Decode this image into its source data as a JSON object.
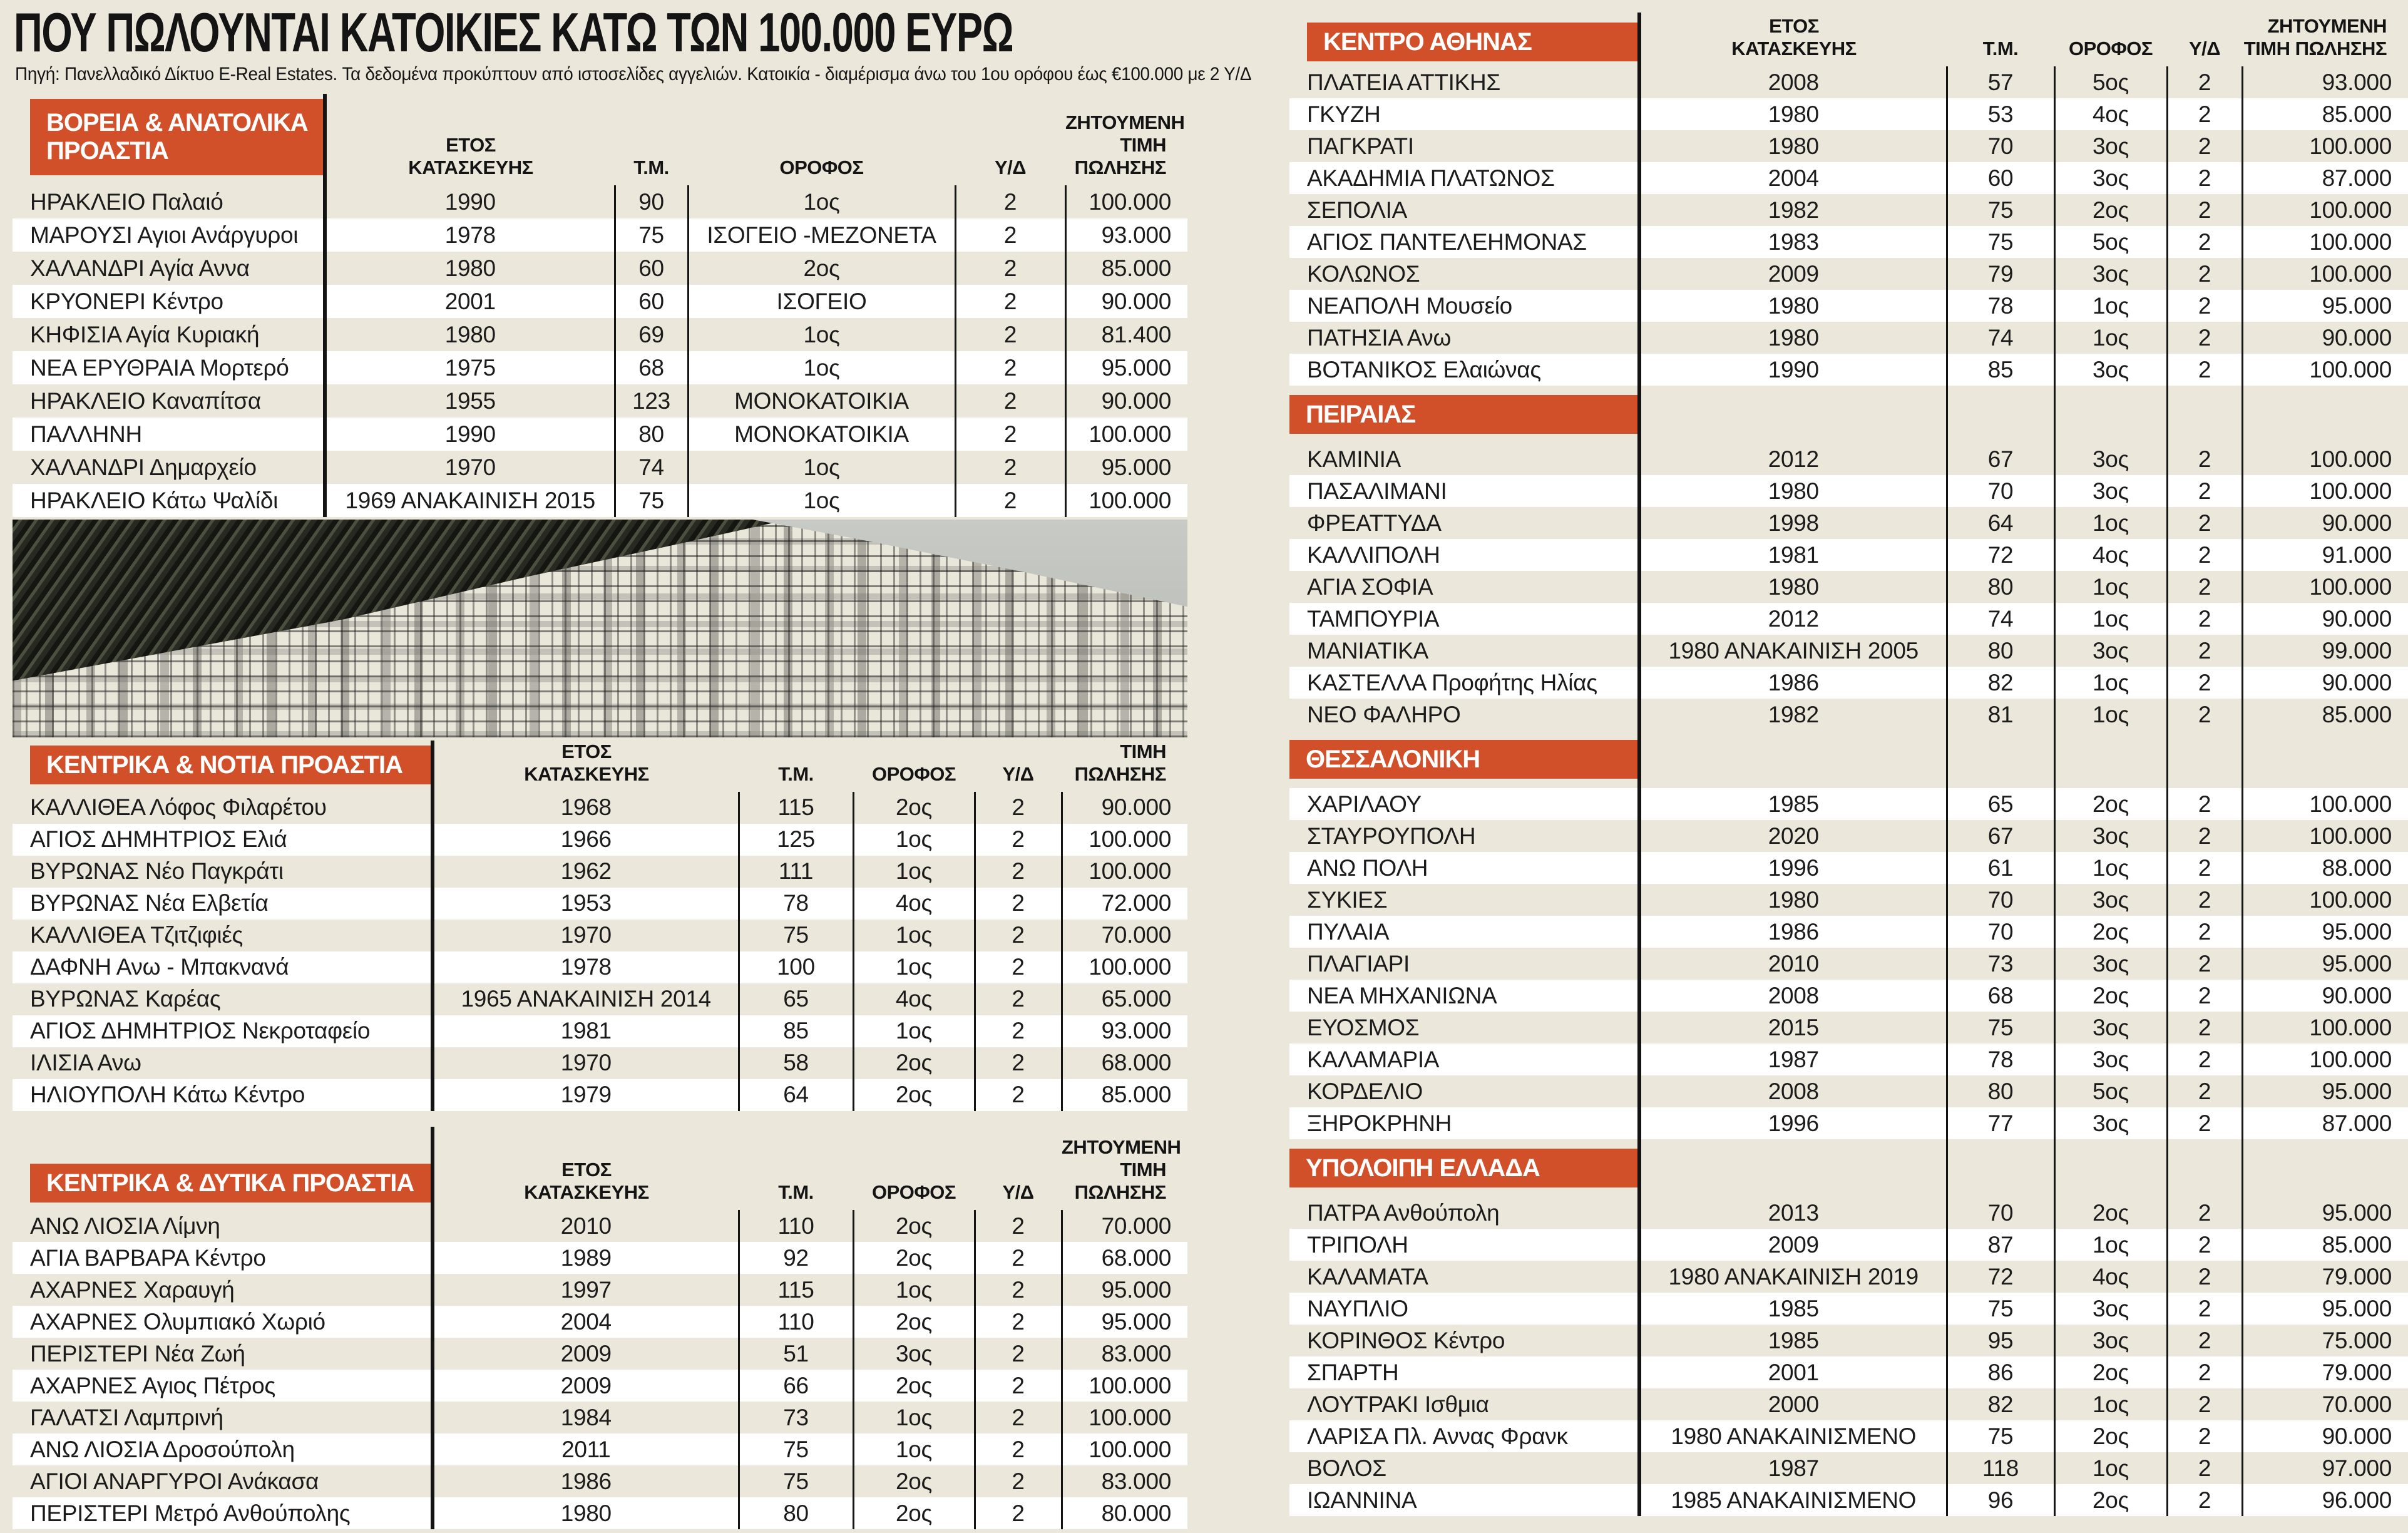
{
  "page": {
    "title": "ΠΟΥ ΠΩΛΟΥΝΤΑΙ ΚΑΤΟΙΚΙΕΣ ΚΑΤΩ ΤΩΝ 100.000 ΕΥΡΩ",
    "source_note": "Πηγή: Πανελλαδικό Δίκτυο  E-Real Estates. Τα δεδομένα προκύπτουν από ιστοσελίδες αγγελιών. Κατοικία - διαμέρισμα άνω του 1ου ορόφου έως €100.000 με 2 Υ/Δ",
    "photo": "ασπρόμαυρη πανοραμική φωτογραφία πυκνοδομημένης αθηναϊκής συνοικίας με λόφο"
  },
  "colors": {
    "accent_orange": "#d25029",
    "page_beige": "#ebe8db",
    "row_white": "#ffffff",
    "line_black": "#141414"
  },
  "columns": {
    "year_l1": "ΕΤΟΣ",
    "year_l2": "ΚΑΤΑΣΚΕΥΗΣ",
    "sqm": "Τ.Μ.",
    "floor": "ΟΡΟΦΟΣ",
    "bedrooms": "Υ/Δ"
  },
  "sections": [
    {
      "title": "ΒΟΡΕΙΑ & ΑΝΑΤΟΛΙΚΑ ΠΡΟΑΣΤΙΑ",
      "price_header": "ΖΗΤΟΥΜΕΝΗ ΤΙΜΗ ΠΩΛΗΣΗΣ",
      "rows": [
        {
          "location": "ΗΡΑΚΛΕΙΟ Παλαιό",
          "year": "1990",
          "sqm": "90",
          "floor": "1ος",
          "bedrooms": "2",
          "price": "100.000"
        },
        {
          "location": "ΜΑΡΟΥΣΙ Αγιοι Ανάργυροι",
          "year": "1978",
          "sqm": "75",
          "floor": "ΙΣΟΓΕΙΟ -ΜΕΖΟΝΕΤΑ",
          "bedrooms": "2",
          "price": "93.000"
        },
        {
          "location": "ΧΑΛΑΝΔΡΙ Αγία Αννα",
          "year": "1980",
          "sqm": "60",
          "floor": "2ος",
          "bedrooms": "2",
          "price": "85.000"
        },
        {
          "location": "ΚΡΥΟΝΕΡΙ Κέντρο",
          "year": "2001",
          "sqm": "60",
          "floor": "ΙΣΟΓΕΙΟ",
          "bedrooms": "2",
          "price": "90.000"
        },
        {
          "location": "ΚΗΦΙΣΙΑ Αγία Κυριακή",
          "year": "1980",
          "sqm": "69",
          "floor": "1ος",
          "bedrooms": "2",
          "price": "81.400"
        },
        {
          "location": "ΝΕΑ ΕΡΥΘΡΑΙΑ Μορτερό",
          "year": "1975",
          "sqm": "68",
          "floor": "1ος",
          "bedrooms": "2",
          "price": "95.000"
        },
        {
          "location": "ΗΡΑΚΛΕΙΟ Καναπίτσα",
          "year": "1955",
          "sqm": "123",
          "floor": "ΜΟΝΟΚΑΤΟΙΚΙΑ",
          "bedrooms": "2",
          "price": "90.000"
        },
        {
          "location": "ΠΑΛΛΗΝΗ",
          "year": "1990",
          "sqm": "80",
          "floor": "ΜΟΝΟΚΑΤΟΙΚΙΑ",
          "bedrooms": "2",
          "price": "100.000"
        },
        {
          "location": "ΧΑΛΑΝΔΡΙ Δημαρχείο",
          "year": "1970",
          "sqm": "74",
          "floor": "1ος",
          "bedrooms": "2",
          "price": "95.000"
        },
        {
          "location": "ΗΡΑΚΛΕΙΟ Κάτω Ψαλίδι",
          "year": "1969 ΑΝΑΚΑΙΝΙΣΗ 2015",
          "sqm": "75",
          "floor": "1ος",
          "bedrooms": "2",
          "price": "100.000"
        }
      ]
    },
    {
      "title": "ΚΕΝΤΡΙΚΑ & ΝΟΤΙΑ ΠΡΟΑΣΤΙΑ",
      "price_header": "ΤΙΜΗ ΠΩΛΗΣΗΣ",
      "rows": [
        {
          "location": "ΚΑΛΛΙΘΕΑ Λόφος Φιλαρέτου",
          "year": "1968",
          "sqm": "115",
          "floor": "2ος",
          "bedrooms": "2",
          "price": "90.000"
        },
        {
          "location": "ΑΓΙΟΣ ΔΗΜΗΤΡΙΟΣ Ελιά",
          "year": "1966",
          "sqm": "125",
          "floor": "1ος",
          "bedrooms": "2",
          "price": "100.000"
        },
        {
          "location": "ΒΥΡΩΝΑΣ Νέο Παγκράτι",
          "year": "1962",
          "sqm": "111",
          "floor": "1ος",
          "bedrooms": "2",
          "price": "100.000"
        },
        {
          "location": "ΒΥΡΩΝΑΣ Νέα Ελβετία",
          "year": "1953",
          "sqm": "78",
          "floor": "4ος",
          "bedrooms": "2",
          "price": "72.000"
        },
        {
          "location": "ΚΑΛΛΙΘΕΑ Τζιτζιφιές",
          "year": "1970",
          "sqm": "75",
          "floor": "1ος",
          "bedrooms": "2",
          "price": "70.000"
        },
        {
          "location": "ΔΑΦΝΗ Ανω - Μπακνανά",
          "year": "1978",
          "sqm": "100",
          "floor": "1ος",
          "bedrooms": "2",
          "price": "100.000"
        },
        {
          "location": "ΒΥΡΩΝΑΣ Καρέας",
          "year": "1965 ΑΝΑΚΑΙΝΙΣΗ 2014",
          "sqm": "65",
          "floor": "4ος",
          "bedrooms": "2",
          "price": "65.000"
        },
        {
          "location": "ΑΓΙΟΣ ΔΗΜΗΤΡΙΟΣ Νεκροταφείο",
          "year": "1981",
          "sqm": "85",
          "floor": "1ος",
          "bedrooms": "2",
          "price": "93.000"
        },
        {
          "location": "ΙΛΙΣΙΑ Ανω",
          "year": "1970",
          "sqm": "58",
          "floor": "2ος",
          "bedrooms": "2",
          "price": "68.000"
        },
        {
          "location": "ΗΛΙΟΥΠΟΛΗ Κάτω Κέντρο",
          "year": "1979",
          "sqm": "64",
          "floor": "2ος",
          "bedrooms": "2",
          "price": "85.000"
        }
      ]
    },
    {
      "title": "ΚΕΝΤΡΙΚΑ & ΔΥΤΙΚΑ ΠΡΟΑΣΤΙΑ",
      "price_header": "ΖΗΤΟΥΜΕΝΗ ΤΙΜΗ ΠΩΛΗΣΗΣ",
      "rows": [
        {
          "location": "ΑΝΩ ΛΙΟΣΙΑ Λίμνη",
          "year": "2010",
          "sqm": "110",
          "floor": "2ος",
          "bedrooms": "2",
          "price": "70.000"
        },
        {
          "location": "ΑΓΙΑ ΒΑΡΒΑΡΑ Κέντρο",
          "year": "1989",
          "sqm": "92",
          "floor": "2ος",
          "bedrooms": "2",
          "price": "68.000"
        },
        {
          "location": "ΑΧΑΡΝΕΣ Χαραυγή",
          "year": "1997",
          "sqm": "115",
          "floor": "1ος",
          "bedrooms": "2",
          "price": "95.000"
        },
        {
          "location": "ΑΧΑΡΝΕΣ Ολυμπιακό Χωριό",
          "year": "2004",
          "sqm": "110",
          "floor": "2ος",
          "bedrooms": "2",
          "price": "95.000"
        },
        {
          "location": "ΠΕΡΙΣΤΕΡΙ Νέα Ζωή",
          "year": "2009",
          "sqm": "51",
          "floor": "3ος",
          "bedrooms": "2",
          "price": "83.000"
        },
        {
          "location": "ΑΧΑΡΝΕΣ Αγιος Πέτρος",
          "year": "2009",
          "sqm": "66",
          "floor": "2ος",
          "bedrooms": "2",
          "price": "100.000"
        },
        {
          "location": "ΓΑΛΑΤΣΙ Λαμπρινή",
          "year": "1984",
          "sqm": "73",
          "floor": "1ος",
          "bedrooms": "2",
          "price": "100.000"
        },
        {
          "location": "ΑΝΩ ΛΙΟΣΙΑ Δροσούπολη",
          "year": "2011",
          "sqm": "75",
          "floor": "1ος",
          "bedrooms": "2",
          "price": "100.000"
        },
        {
          "location": "ΑΓΙΟΙ ΑΝΑΡΓΥΡΟΙ Ανάκασα",
          "year": "1986",
          "sqm": "75",
          "floor": "2ος",
          "bedrooms": "2",
          "price": "83.000"
        },
        {
          "location": "ΠΕΡΙΣΤΕΡΙ Μετρό Ανθούπολης",
          "year": "1980",
          "sqm": "80",
          "floor": "2ος",
          "bedrooms": "2",
          "price": "80.000"
        }
      ]
    },
    {
      "title": "ΚΕΝΤΡΟ ΑΘΗΝΑΣ",
      "price_header": "ΖΗΤΟΥΜΕΝΗ ΤΙΜΗ ΠΩΛΗΣΗΣ",
      "rows": [
        {
          "location": "ΠΛΑΤΕΙΑ ΑΤΤΙΚΗΣ",
          "year": "2008",
          "sqm": "57",
          "floor": "5ος",
          "bedrooms": "2",
          "price": "93.000"
        },
        {
          "location": "ΓΚΥΖΗ",
          "year": "1980",
          "sqm": "53",
          "floor": "4ος",
          "bedrooms": "2",
          "price": "85.000"
        },
        {
          "location": "ΠΑΓΚΡΑΤΙ",
          "year": "1980",
          "sqm": "70",
          "floor": "3ος",
          "bedrooms": "2",
          "price": "100.000"
        },
        {
          "location": "ΑΚΑΔΗΜΙΑ ΠΛΑΤΩΝΟΣ",
          "year": "2004",
          "sqm": "60",
          "floor": "3ος",
          "bedrooms": "2",
          "price": "87.000"
        },
        {
          "location": "ΣΕΠΟΛΙΑ",
          "year": "1982",
          "sqm": "75",
          "floor": "2ος",
          "bedrooms": "2",
          "price": "100.000"
        },
        {
          "location": "ΑΓΙΟΣ ΠΑΝΤΕΛΕΗΜΟΝΑΣ",
          "year": "1983",
          "sqm": "75",
          "floor": "5ος",
          "bedrooms": "2",
          "price": "100.000"
        },
        {
          "location": "ΚΟΛΩΝΟΣ",
          "year": "2009",
          "sqm": "79",
          "floor": "3ος",
          "bedrooms": "2",
          "price": "100.000"
        },
        {
          "location": "ΝΕΑΠΟΛΗ Μουσείο",
          "year": "1980",
          "sqm": "78",
          "floor": "1ος",
          "bedrooms": "2",
          "price": "95.000"
        },
        {
          "location": "ΠΑΤΗΣΙΑ Ανω",
          "year": "1980",
          "sqm": "74",
          "floor": "1ος",
          "bedrooms": "2",
          "price": "90.000"
        },
        {
          "location": "ΒΟΤΑΝΙΚΟΣ Ελαιώνας",
          "year": "1990",
          "sqm": "85",
          "floor": "3ος",
          "bedrooms": "2",
          "price": "100.000"
        }
      ]
    },
    {
      "title": "ΠΕΙΡΑΙΑΣ",
      "price_header": "ΖΗΤΟΥΜΕΝΗ ΤΙΜΗ ΠΩΛΗΣΗΣ",
      "rows": [
        {
          "location": "ΚΑΜΙΝΙΑ",
          "year": "2012",
          "sqm": "67",
          "floor": "3ος",
          "bedrooms": "2",
          "price": "100.000"
        },
        {
          "location": "ΠΑΣΑΛΙΜΑΝΙ",
          "year": "1980",
          "sqm": "70",
          "floor": "3ος",
          "bedrooms": "2",
          "price": "100.000"
        },
        {
          "location": "ΦΡΕΑΤΤΥΔΑ",
          "year": "1998",
          "sqm": "64",
          "floor": "1ος",
          "bedrooms": "2",
          "price": "90.000"
        },
        {
          "location": "ΚΑΛΛΙΠΟΛΗ",
          "year": "1981",
          "sqm": "72",
          "floor": "4ος",
          "bedrooms": "2",
          "price": "91.000"
        },
        {
          "location": "ΑΓΙΑ ΣΟΦΙΑ",
          "year": "1980",
          "sqm": "80",
          "floor": "1ος",
          "bedrooms": "2",
          "price": "100.000"
        },
        {
          "location": "ΤΑΜΠΟΥΡΙΑ",
          "year": "2012",
          "sqm": "74",
          "floor": "1ος",
          "bedrooms": "2",
          "price": "90.000"
        },
        {
          "location": "ΜΑΝΙΑΤΙΚΑ",
          "year": "1980 ΑΝΑΚΑΙΝΙΣΗ 2005",
          "sqm": "80",
          "floor": "3ος",
          "bedrooms": "2",
          "price": "99.000"
        },
        {
          "location": "ΚΑΣΤΕΛΛΑ Προφήτης Ηλίας",
          "year": "1986",
          "sqm": "82",
          "floor": "1ος",
          "bedrooms": "2",
          "price": "90.000"
        },
        {
          "location": "ΝΕΟ ΦΑΛΗΡΟ",
          "year": "1982",
          "sqm": "81",
          "floor": "1ος",
          "bedrooms": "2",
          "price": "85.000"
        }
      ]
    },
    {
      "title": "ΘΕΣΣΑΛΟΝΙΚΗ",
      "price_header": "ΖΗΤΟΥΜΕΝΗ ΤΙΜΗ ΠΩΛΗΣΗΣ",
      "rows": [
        {
          "location": "ΧΑΡΙΛΑΟΥ",
          "year": "1985",
          "sqm": "65",
          "floor": "2ος",
          "bedrooms": "2",
          "price": "100.000"
        },
        {
          "location": "ΣΤΑΥΡΟΥΠΟΛΗ",
          "year": "2020",
          "sqm": "67",
          "floor": "3ος",
          "bedrooms": "2",
          "price": "100.000"
        },
        {
          "location": "ΑΝΩ ΠΟΛΗ",
          "year": "1996",
          "sqm": "61",
          "floor": "1ος",
          "bedrooms": "2",
          "price": "88.000"
        },
        {
          "location": "ΣΥΚΙΕΣ",
          "year": "1980",
          "sqm": "70",
          "floor": "3ος",
          "bedrooms": "2",
          "price": "100.000"
        },
        {
          "location": "ΠΥΛΑΙΑ",
          "year": "1986",
          "sqm": "70",
          "floor": "2ος",
          "bedrooms": "2",
          "price": "95.000"
        },
        {
          "location": "ΠΛΑΓΙΑΡΙ",
          "year": "2010",
          "sqm": "73",
          "floor": "3ος",
          "bedrooms": "2",
          "price": "95.000"
        },
        {
          "location": "ΝΕΑ ΜΗΧΑΝΙΩΝΑ",
          "year": "2008",
          "sqm": "68",
          "floor": "2ος",
          "bedrooms": "2",
          "price": "90.000"
        },
        {
          "location": "ΕΥΟΣΜΟΣ",
          "year": "2015",
          "sqm": "75",
          "floor": "3ος",
          "bedrooms": "2",
          "price": "100.000"
        },
        {
          "location": "ΚΑΛΑΜΑΡΙΑ",
          "year": "1987",
          "sqm": "78",
          "floor": "3ος",
          "bedrooms": "2",
          "price": "100.000"
        },
        {
          "location": "ΚΟΡΔΕΛΙΟ",
          "year": "2008",
          "sqm": "80",
          "floor": "5ος",
          "bedrooms": "2",
          "price": "95.000"
        },
        {
          "location": "ΞΗΡΟΚΡΗΝΗ",
          "year": "1996",
          "sqm": "77",
          "floor": "3ος",
          "bedrooms": "2",
          "price": "87.000"
        }
      ]
    },
    {
      "title": "ΥΠΟΛΟΙΠΗ ΕΛΛΑΔΑ",
      "price_header": "ΖΗΤΟΥΜΕΝΗ ΤΙΜΗ ΠΩΛΗΣΗΣ",
      "rows": [
        {
          "location": "ΠΑΤΡΑ Ανθούπολη",
          "year": "2013",
          "sqm": "70",
          "floor": "2ος",
          "bedrooms": "2",
          "price": "95.000"
        },
        {
          "location": "ΤΡΙΠΟΛΗ",
          "year": "2009",
          "sqm": "87",
          "floor": "1ος",
          "bedrooms": "2",
          "price": "85.000"
        },
        {
          "location": "ΚΑΛΑΜΑΤΑ",
          "year": "1980 ΑΝΑΚΑΙΝΙΣΗ 2019",
          "sqm": "72",
          "floor": "4ος",
          "bedrooms": "2",
          "price": "79.000"
        },
        {
          "location": "ΝΑΥΠΛΙΟ",
          "year": "1985",
          "sqm": "75",
          "floor": "3ος",
          "bedrooms": "2",
          "price": "95.000"
        },
        {
          "location": "ΚΟΡΙΝΘΟΣ Κέντρο",
          "year": "1985",
          "sqm": "95",
          "floor": "3ος",
          "bedrooms": "2",
          "price": "75.000"
        },
        {
          "location": "ΣΠΑΡΤΗ",
          "year": "2001",
          "sqm": "86",
          "floor": "2ος",
          "bedrooms": "2",
          "price": "79.000"
        },
        {
          "location": "ΛΟΥΤΡΑΚΙ Ισθμια",
          "year": "2000",
          "sqm": "82",
          "floor": "1ος",
          "bedrooms": "2",
          "price": "70.000"
        },
        {
          "location": "ΛΑΡΙΣΑ Πλ. Αννας Φρανκ",
          "year": "1980 ΑΝΑΚΑΙΝΙΣΜΕΝΟ",
          "sqm": "75",
          "floor": "2ος",
          "bedrooms": "2",
          "price": "90.000"
        },
        {
          "location": "ΒΟΛΟΣ",
          "year": "1987",
          "sqm": "118",
          "floor": "1ος",
          "bedrooms": "2",
          "price": "97.000"
        },
        {
          "location": "ΙΩΑΝΝΙΝΑ",
          "year": "1985 ΑΝΑΚΑΙΝΙΣΜΕΝΟ",
          "sqm": "96",
          "floor": "2ος",
          "bedrooms": "2",
          "price": "96.000"
        }
      ]
    }
  ]
}
